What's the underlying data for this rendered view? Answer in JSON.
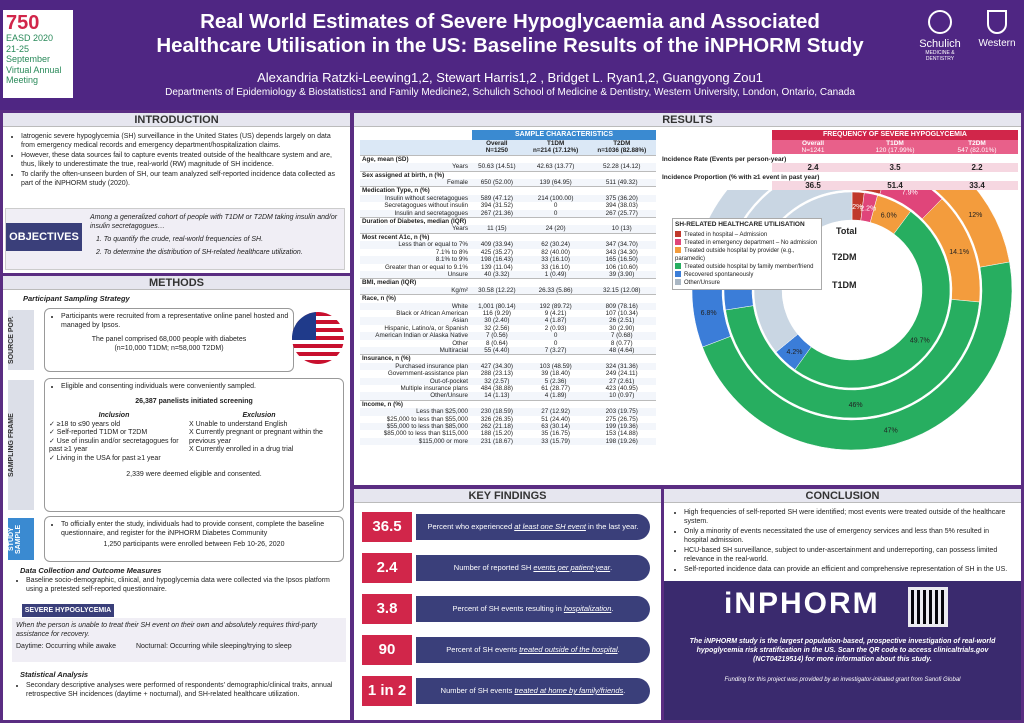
{
  "header": {
    "number": "750",
    "conf": "EASD 2020",
    "dates": "21-25 September",
    "meet1": "Virtual Annual",
    "meet2": "Meeting",
    "title1": "Real World Estimates of Severe Hypoglycaemia and Associated",
    "title2": "Healthcare Utilisation in the US: Baseline Results of the iNPHORM Study",
    "authors": "Alexandria Ratzki-Leewing1,2, Stewart Harris1,2 , Bridget L. Ryan1,2, Guangyong Zou1",
    "dept": "Departments of Epidemiology & Biostatistics1 and Family Medicine2, Schulich School of Medicine & Dentistry, Western University, London, Ontario, Canada",
    "logo1": "Schulich",
    "logo1sub": "MEDICINE & DENTISTRY",
    "logo2": "Western"
  },
  "intro": {
    "heading": "INTRODUCTION",
    "bullets": [
      "Iatrogenic severe hypoglycemia (SH) surveillance in the United States (US) depends largely on data from emergency medical records and emergency department/hospitalization claims.",
      "However, these data sources fail to capture events treated outside of the healthcare system and are, thus, likely to underestimate the true, real-world (RW) magnitude of SH incidence.",
      "To clarify the often-unseen burden of SH, our team analyzed self-reported incidence data collected as part of the iNPHORM study (2020)."
    ]
  },
  "objectives": {
    "label": "OBJECTIVES",
    "lead": "Among a generalized cohort of people with T1DM or T2DM taking insulin and/or insulin secretagogues…",
    "o1": "1.    To quantify the crude, real-world frequencies of SH.",
    "o2": "2.    To determine the distribution of SH-related healthcare utilization."
  },
  "methods": {
    "heading": "METHODS",
    "strategy": "Participant Sampling Strategy",
    "src_label": "SOURCE POP.",
    "src1": "Participants were recruited from a representative online panel hosted and managed by Ipsos.",
    "src2": "The panel comprised 68,000 people with diabetes",
    "src3": "(n=10,000 T1DM; n=58,000 T2DM)",
    "frame_label": "SAMPLING FRAME",
    "fr1": "Eligible and consenting individuals were conveniently sampled.",
    "fr2": "26,387 panelists initiated screening",
    "incl": "Inclusion",
    "excl": "Exclusion",
    "inc": [
      "✓ ≥18 to ≤90 years old",
      "✓ Self-reported T1DM or T2DM",
      "✓ Use of insulin and/or secretagogues for past ≥1 year",
      "✓ Living in the USA for past  ≥1 year"
    ],
    "exc": [
      "X   Unable to understand English",
      "X   Currently pregnant or pregnant within the previous year",
      "X   Currently enrolled in a drug trial"
    ],
    "fr3": "2,339 were deemed eligible and consented.",
    "study_label": "STUDY SAMPLE",
    "st1": "To officially enter the study, individuals had to provide consent, complete the baseline questionnaire, and register for the iNPHORM Diabetes Community",
    "st2": "1,250 participants were enrolled between Feb 10-26, 2020",
    "dc_head": "Data Collection and Outcome Measures",
    "dc1": "Baseline socio-demographic, clinical, and hypoglycemia data were collected via the Ipsos platform using a pretested self-reported questionnaire.",
    "sh_head": "SEVERE HYPOGLYCEMIA",
    "sh_def": "When the person is unable to treat their SH event on their own and absolutely requires third-party assistance for recovery.",
    "sh_day": "Daytime: Occurring while awake",
    "sh_noc": "Nocturnal: Occurring while sleeping/trying to sleep",
    "sa_head": "Statistical Analysis",
    "sa1": "Secondary descriptive analyses were performed of respondents' demographic/clinical traits, annual retrospective SH incidences (daytime + nocturnal), and SH-related healthcare utilization."
  },
  "results": {
    "heading": "RESULTS",
    "sc_head": "SAMPLE CHARACTERISTICS",
    "cols": [
      "Overall",
      "T1DM",
      "T2DM"
    ],
    "ns": [
      "N=1250",
      "n=214 (17.12%)",
      "n=1036 (82.88%)"
    ],
    "rows": [
      [
        "sec",
        "Age, mean (SD)",
        "",
        "",
        ""
      ],
      [
        "r",
        "Years",
        "50.63 (14.51)",
        "42.63 (13.77)",
        "52.28 (14.12)"
      ],
      [
        "sec",
        "Sex assigned at birth, n (%)",
        "",
        "",
        ""
      ],
      [
        "r",
        "Female",
        "650 (52.00)",
        "139 (64.95)",
        "511 (49.32)"
      ],
      [
        "sec",
        "Medication Type, n (%)",
        "",
        "",
        ""
      ],
      [
        "r",
        "Insulin without secretagogues",
        "589 (47.12)",
        "214 (100.00)",
        "375 (36.20)"
      ],
      [
        "r",
        "Secretagogues without insulin",
        "394 (31.52)",
        "0",
        "394 (38.03)"
      ],
      [
        "r",
        "Insulin and secretagogues",
        "267 (21.36)",
        "0",
        "267 (25.77)"
      ],
      [
        "sec",
        "Duration of Diabetes, median (IQR)",
        "",
        "",
        ""
      ],
      [
        "r",
        "Years",
        "11 (15)",
        "24 (20)",
        "10 (13)"
      ],
      [
        "sec",
        "Most recent A1c, n (%)",
        "",
        "",
        ""
      ],
      [
        "r",
        "Less than or equal to 7%",
        "409 (33.94)",
        "62 (30.24)",
        "347 (34.70)"
      ],
      [
        "r",
        "7.1% to 8%",
        "425 (35.27)",
        "82 (40.00)",
        "343 (34.30)"
      ],
      [
        "r",
        "8.1% to 9%",
        "198 (16.43)",
        "33 (16.10)",
        "165 (16.50)"
      ],
      [
        "r",
        "Greater than or equal to 9.1%",
        "139 (11.04)",
        "33 (16.10)",
        "106 (10.60)"
      ],
      [
        "r",
        "Unsure",
        "40  (3.32)",
        "1 (0.49)",
        "39 (3.90)"
      ],
      [
        "sec",
        "BMI, median (IQR)",
        "",
        "",
        ""
      ],
      [
        "r",
        "Kg/m²",
        "30.58 (12.22)",
        "26.33 (5.86)",
        "32.15 (12.08)"
      ],
      [
        "sec",
        "Race, n (%)",
        "",
        "",
        ""
      ],
      [
        "r",
        "White",
        "1,001 (80.14)",
        "192 (89.72)",
        "809 (78.16)"
      ],
      [
        "r",
        "Black or African American",
        "116 (9.29)",
        "9 (4.21)",
        "107 (10.34)"
      ],
      [
        "r",
        "Asian",
        "30 (2.40)",
        "4 (1.87)",
        "26 (2.51)"
      ],
      [
        "r",
        "Hispanic, Latino/a, or Spanish",
        "32 (2.56)",
        "2 (0.93)",
        "30 (2.90)"
      ],
      [
        "r",
        "American Indian or Alaska Native",
        "7 (0.56)",
        "0",
        "7 (0.68)"
      ],
      [
        "r",
        "Other",
        "8 (0.64)",
        "0",
        "8 (0.77)"
      ],
      [
        "r",
        "Multiracial",
        "55 (4.40)",
        "7 (3.27)",
        "48 (4.64)"
      ],
      [
        "sec",
        "Insurance, n (%)",
        "",
        "",
        ""
      ],
      [
        "r",
        "Purchased insurance plan",
        "427 (34.30)",
        "103 (48.59)",
        "324 (31.36)"
      ],
      [
        "r",
        "Government-assistance plan",
        "288 (23.13)",
        "39 (18.40)",
        "249 (24.11)"
      ],
      [
        "r",
        "Out-of-pocket",
        "32 (2.57)",
        "5 (2.36)",
        "27 (2.61)"
      ],
      [
        "r",
        "Multiple insurance plans",
        "484 (38.88)",
        "61 (28.77)",
        "423 (40.95)"
      ],
      [
        "r",
        "Other/Unsure",
        "14 (1.13)",
        "4 (1.89)",
        "10 (0.97)"
      ],
      [
        "sec",
        "Income, n (%)",
        "",
        "",
        ""
      ],
      [
        "r",
        "Less than $25,000",
        "230 (18.59)",
        "27 (12.92)",
        "203 (19.75)"
      ],
      [
        "r",
        "$25,000 to less than $55,000",
        "326 (26.35)",
        "51 (24.40)",
        "275 (26.75)"
      ],
      [
        "r",
        "$55,000 to less than $85,000",
        "262 (21.18)",
        "63 (30.14)",
        "199 (19.36)"
      ],
      [
        "r",
        "$85,000 to less than $115,000",
        "188 (15.20)",
        "35 (16.75)",
        "153 (14.88)"
      ],
      [
        "r",
        "$115,000 or more",
        "231 (18.67)",
        "33 (15.79)",
        "198 (19.26)"
      ]
    ],
    "freq_head": "FREQUENCY OF SEVERE HYPOGLYCEMIA",
    "fcols": [
      "Overall",
      "T1DM",
      "T2DM"
    ],
    "fns": [
      "N=1241",
      "120 (17.99%)",
      "547 (82.01%)"
    ],
    "rate_label": "Incidence Rate (Events per person-year)",
    "rates": [
      "2.4",
      "3.5",
      "2.2"
    ],
    "prop_label": "Incidence Proportion (% with ≥1 event in past year)",
    "props": [
      "36.5",
      "51.4",
      "33.4"
    ],
    "util_head": "SH-RELATED HEALTHCARE UTILISATION",
    "legend": [
      "Treated in hospital – Admission",
      "Treated in emergency department – No admission",
      "Treated outside hospital by provider (e.g., paramedic)",
      "Treated outside hospital by family member/friend",
      "Recovered spontaneously",
      "Other/Unsure"
    ],
    "ring_labels": [
      "Total",
      "T2DM",
      "T1DM"
    ]
  },
  "colors": [
    "#c0392b",
    "#e0457a",
    "#f39c3d",
    "#27ae60",
    "#3b7dd8",
    "#aab7c4"
  ],
  "donut": {
    "total": [
      3.8,
      6.4,
      12,
      47,
      6.8,
      24
    ],
    "t2dm": [
      4.5,
      7.9,
      14.1,
      46,
      7.7,
      19.8
    ],
    "t1dm": [
      2,
      2.2,
      6.0,
      49.7,
      4.2,
      35.9
    ]
  },
  "donut_labels": [
    [
      "3.8%",
      0
    ],
    [
      "6.4%",
      0
    ],
    [
      "12%",
      0
    ],
    [
      "47%",
      0
    ],
    [
      "6.8%",
      0
    ],
    [
      "4.5%",
      1
    ],
    [
      "7.9%",
      1
    ],
    [
      "14.1%",
      1
    ],
    [
      "46%",
      1
    ],
    [
      "7.7%",
      1
    ],
    [
      "2%",
      2
    ],
    [
      "2.2%",
      2
    ],
    [
      "6.0%",
      2
    ],
    [
      "49.7%",
      2
    ],
    [
      "4.2%",
      2
    ]
  ],
  "findings": {
    "heading": "KEY FINDINGS",
    "items": [
      {
        "num": "36.5",
        "pre": "Percent who experienced ",
        "em": "at least one SH event",
        "post": " in the last year."
      },
      {
        "num": "2.4",
        "pre": "Number of reported SH ",
        "em": "events per patient-year",
        "post": "."
      },
      {
        "num": "3.8",
        "pre": "Percent of SH events resulting in ",
        "em": "hospitalization",
        "post": "."
      },
      {
        "num": "90",
        "pre": "Percent of SH events ",
        "em": "treated outside of the hospital",
        "post": "."
      },
      {
        "num": "1 in 2",
        "pre": "Number of SH events ",
        "em": "treated at home by family/friends",
        "post": "."
      }
    ]
  },
  "conclusion": {
    "heading": "CONCLUSION",
    "bullets": [
      "High frequencies of self-reported SH were identified; most events were treated outside of the healthcare system.",
      "Only a minority of events necessitated the use of emergency services and less than 5% resulted in hospital admission.",
      "HCU-based SH surveillance, subject to under-ascertainment and underreporting, can possess limited relevance in the real-world.",
      "Self-reported incidence data can provide an efficient and comprehensive representation of SH in the US."
    ],
    "brand": "iNPHORM",
    "blurb": "The iNPHORM study is the largest population-based, prospective investigation of real-world hypoglycemia risk stratification in the US. Scan the QR code to access clinicaltrials.gov (NCT04219514) for more information about this study.",
    "funding": "Funding for this project was provided by an investigator-initiated grant from Sanofi Global"
  }
}
